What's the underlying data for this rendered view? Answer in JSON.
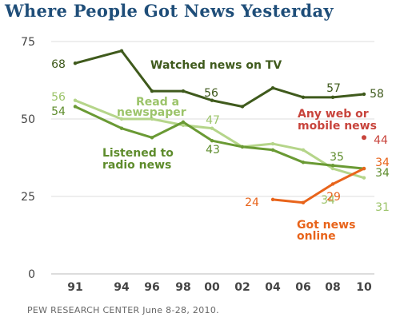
{
  "title": "Where People Got News Yesterday",
  "source": "PEW RESEARCH  CENTER June 8-28, 2010.",
  "chart_data": {
    "type": "line",
    "x": [
      1991,
      1994,
      1996,
      1998,
      2000,
      2002,
      2004,
      2006,
      2008,
      2010
    ],
    "x_tick_labels": [
      "91",
      "94",
      "96",
      "98",
      "00",
      "02",
      "04",
      "06",
      "08",
      "10"
    ],
    "y_ticks": [
      0,
      25,
      50,
      75
    ],
    "ylim": [
      0,
      75
    ],
    "grid": true,
    "series": [
      {
        "name": "Watched news on TV",
        "name_lines": [
          "Watched news on TV"
        ],
        "color": "#3f5a1c",
        "points": [
          [
            1991,
            68
          ],
          [
            1994,
            72
          ],
          [
            1996,
            59
          ],
          [
            1998,
            59
          ],
          [
            2000,
            56
          ],
          [
            2002,
            54
          ],
          [
            2004,
            60
          ],
          [
            2006,
            57
          ],
          [
            2008,
            57
          ],
          [
            2010,
            58
          ]
        ]
      },
      {
        "name": "Read a newspaper",
        "name_lines": [
          "Read a",
          "newspaper"
        ],
        "color": "#b5d58a",
        "points": [
          [
            1991,
            56
          ],
          [
            1994,
            50
          ],
          [
            1996,
            50
          ],
          [
            1998,
            48
          ],
          [
            2000,
            47
          ],
          [
            2002,
            41
          ],
          [
            2004,
            42
          ],
          [
            2006,
            40
          ],
          [
            2008,
            34
          ],
          [
            2010,
            31
          ]
        ]
      },
      {
        "name": "Listened to radio news",
        "name_lines": [
          "Listened to",
          "radio news"
        ],
        "color": "#6a9a34",
        "points": [
          [
            1991,
            54
          ],
          [
            1994,
            47
          ],
          [
            1996,
            44
          ],
          [
            1998,
            49
          ],
          [
            2000,
            43
          ],
          [
            2002,
            41
          ],
          [
            2004,
            40
          ],
          [
            2006,
            36
          ],
          [
            2008,
            35
          ],
          [
            2010,
            34
          ]
        ]
      },
      {
        "name": "Got news online",
        "name_lines": [
          "Got news",
          "online"
        ],
        "color": "#e8641b",
        "points": [
          [
            2004,
            24
          ],
          [
            2006,
            23
          ],
          [
            2008,
            29
          ],
          [
            2010,
            34
          ]
        ]
      },
      {
        "name": "Any web or mobile news",
        "name_lines": [
          "Any web or",
          "mobile news"
        ],
        "color": "#c8443c",
        "points": [
          [
            2010,
            44
          ]
        ]
      }
    ],
    "data_labels": [
      {
        "text": "68",
        "x": 1991,
        "y": 68,
        "series": "Watched news on TV"
      },
      {
        "text": "56",
        "x": 2000,
        "y": 56,
        "series": "Watched news on TV"
      },
      {
        "text": "57",
        "x": 2008,
        "y": 57,
        "series": "Watched news on TV"
      },
      {
        "text": "58",
        "x": 2010,
        "y": 58,
        "series": "Watched news on TV"
      },
      {
        "text": "56",
        "x": 1991,
        "y": 56,
        "series": "Read a newspaper"
      },
      {
        "text": "47",
        "x": 2000,
        "y": 47,
        "series": "Read a newspaper"
      },
      {
        "text": "34",
        "x": 2008,
        "y": 34,
        "series": "Read a newspaper"
      },
      {
        "text": "31",
        "x": 2010,
        "y": 31,
        "series": "Read a newspaper"
      },
      {
        "text": "54",
        "x": 1991,
        "y": 54,
        "series": "Listened to radio news"
      },
      {
        "text": "43",
        "x": 2000,
        "y": 43,
        "series": "Listened to radio news"
      },
      {
        "text": "35",
        "x": 2008,
        "y": 35,
        "series": "Listened to radio news"
      },
      {
        "text": "34",
        "x": 2010,
        "y": 34,
        "series": "Listened to radio news"
      },
      {
        "text": "24",
        "x": 2004,
        "y": 24,
        "series": "Got news online"
      },
      {
        "text": "29",
        "x": 2008,
        "y": 29,
        "series": "Got news online"
      },
      {
        "text": "34",
        "x": 2010,
        "y": 34,
        "series": "Got news online"
      },
      {
        "text": "44",
        "x": 2010,
        "y": 44,
        "series": "Any web or mobile news"
      }
    ]
  }
}
